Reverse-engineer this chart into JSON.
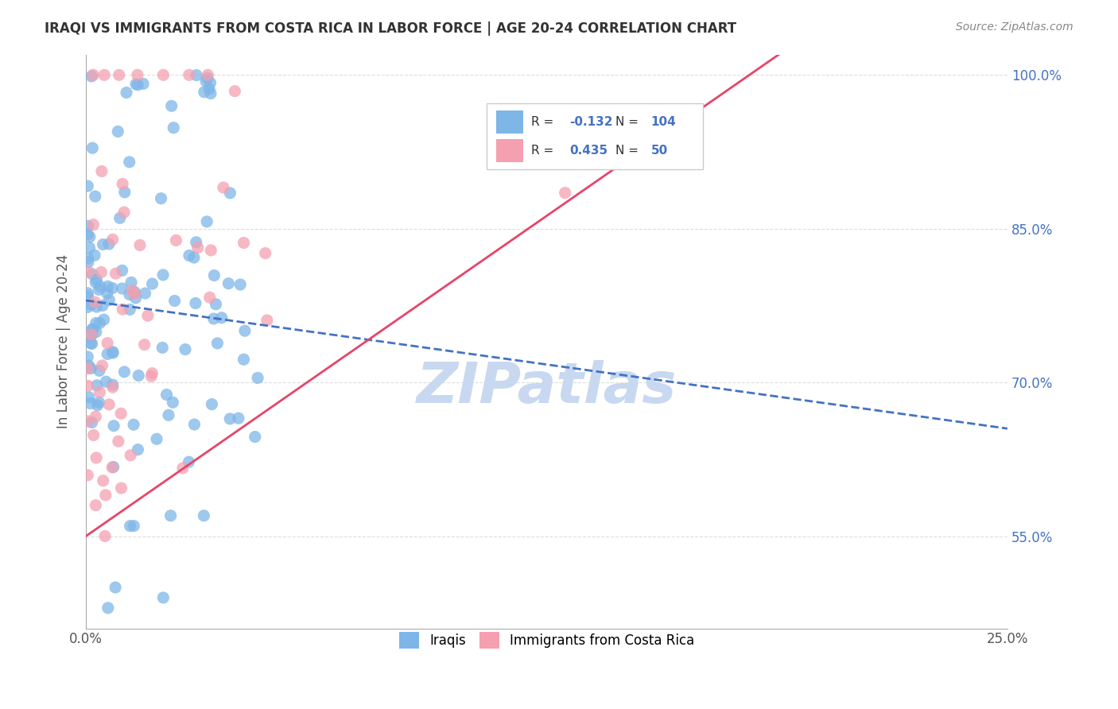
{
  "title": "IRAQI VS IMMIGRANTS FROM COSTA RICA IN LABOR FORCE | AGE 20-24 CORRELATION CHART",
  "source": "Source: ZipAtlas.com",
  "ylabel": "In Labor Force | Age 20-24",
  "xmin": 0.0,
  "xmax": 25.0,
  "ymin": 46.0,
  "ymax": 102.0,
  "blue_color": "#7EB6E8",
  "pink_color": "#F4A0B0",
  "blue_line_color": "#4472C4",
  "pink_line_color": "#E8446A",
  "legend_R_blue": "-0.132",
  "legend_N_blue": "104",
  "legend_R_pink": "0.435",
  "legend_N_pink": "50",
  "legend_label_blue": "Iraqis",
  "legend_label_pink": "Immigrants from Costa Rica",
  "watermark": "ZIPatlas",
  "watermark_color": "#C8D8F0",
  "grid_color": "#DDDDDD",
  "background_color": "#FFFFFF",
  "blue_slope": -0.5,
  "blue_intercept": 78.0,
  "pink_slope": 2.5,
  "pink_intercept": 55.0
}
